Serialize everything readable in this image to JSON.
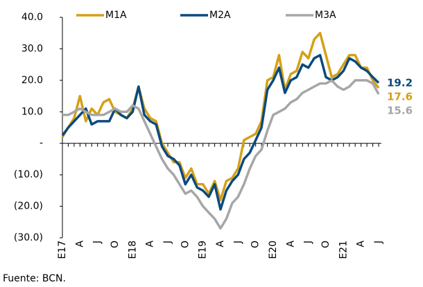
{
  "chart_data": {
    "type": "line",
    "categories": [
      "E17",
      null,
      null,
      "A",
      null,
      null,
      "J",
      null,
      null,
      "O",
      null,
      null,
      "E18",
      null,
      null,
      "A",
      null,
      null,
      "J",
      null,
      null,
      "O",
      null,
      null,
      "E19",
      null,
      null,
      "A",
      null,
      null,
      "J",
      null,
      null,
      "O",
      null,
      null,
      "E20",
      null,
      null,
      "A",
      null,
      null,
      "J",
      null,
      null,
      "O",
      null,
      null,
      "E21",
      null,
      null,
      "A",
      null,
      null,
      "J"
    ],
    "series": [
      {
        "name": "M1A",
        "color": "#d4a017",
        "values": [
          2,
          5,
          8,
          15,
          7,
          11,
          9,
          13,
          14,
          10,
          9,
          8,
          11,
          18,
          11,
          8,
          7,
          0,
          -3,
          -6,
          -6,
          -11,
          -8,
          -13,
          -13,
          -16,
          -12,
          -18,
          -12,
          -11,
          -8,
          1,
          2,
          3,
          7,
          20,
          21,
          28,
          17,
          22,
          23,
          29,
          27,
          33,
          35,
          28,
          21,
          22,
          25,
          28,
          28,
          24,
          24,
          20,
          17.6
        ]
      },
      {
        "name": "M2A",
        "color": "#0b4a7e",
        "values": [
          2.5,
          5,
          7,
          9,
          11,
          6,
          7,
          7,
          7,
          11,
          9,
          8,
          10,
          18,
          9,
          7,
          6,
          -1,
          -4,
          -5,
          -7,
          -13,
          -10,
          -14,
          -15,
          -17,
          -13,
          -21,
          -15,
          -12,
          -10,
          -5,
          -3,
          1,
          5,
          17,
          20,
          24,
          16,
          20,
          21,
          25,
          24,
          27,
          28,
          21,
          20,
          21,
          23,
          27,
          26,
          24,
          23,
          21,
          19.2
        ]
      },
      {
        "name": "M3A",
        "color": "#a6a6a6",
        "values": [
          9,
          9,
          10,
          11,
          10,
          9,
          9,
          9,
          10,
          11,
          10,
          10,
          12,
          11,
          7,
          3,
          -1,
          -5,
          -8,
          -10,
          -13,
          -16,
          -15,
          -17,
          -20,
          -22,
          -24,
          -27,
          -24,
          -19,
          -17,
          -13,
          -8,
          -4,
          -2,
          4,
          9,
          10,
          11,
          13,
          14,
          16,
          17,
          18,
          19,
          19,
          20,
          18,
          17,
          18,
          20,
          20,
          20,
          19,
          15.6
        ]
      }
    ],
    "ylim": [
      -30,
      40
    ],
    "yticks": [
      {
        "value": 40,
        "label": "40.0"
      },
      {
        "value": 30,
        "label": "30.0"
      },
      {
        "value": 20,
        "label": "20.0"
      },
      {
        "value": 10,
        "label": "10.0"
      },
      {
        "value": 0,
        "label": "-"
      },
      {
        "value": -10,
        "label": "(10.0)"
      },
      {
        "value": -20,
        "label": "(20.0)"
      },
      {
        "value": -30,
        "label": "(30.0)"
      }
    ],
    "grid": false,
    "source": "Fuente: BCN."
  }
}
